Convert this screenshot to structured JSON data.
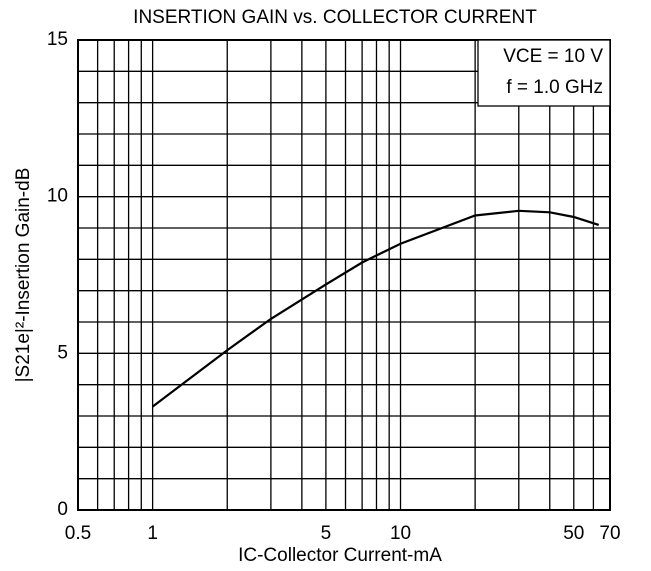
{
  "chart_data": {
    "type": "line",
    "title": "INSERTION GAIN vs. COLLECTOR CURRENT",
    "xlabel": "IC-Collector Current-mA",
    "ylabel": "|S21e|²-Insertion Gain-dB",
    "annotations": [
      "VCE = 10 V",
      "f = 1.0 GHz"
    ],
    "xscale": "log",
    "x": [
      1,
      2,
      3,
      5,
      7,
      10,
      20,
      30,
      40,
      50,
      63
    ],
    "series": [
      {
        "color": "#000000",
        "values": [
          3.3,
          5.1,
          6.1,
          7.2,
          7.9,
          8.5,
          9.4,
          9.55,
          9.5,
          9.35,
          9.1
        ]
      }
    ],
    "xlim": [
      0.5,
      70
    ],
    "xticks": [
      0.5,
      1,
      5,
      10,
      50,
      70
    ],
    "ylim": [
      0,
      15
    ],
    "yticks": [
      0,
      5,
      10,
      15
    ],
    "xgrid": [
      0.5,
      0.6,
      0.7,
      0.8,
      0.9,
      1,
      2,
      3,
      4,
      5,
      6,
      7,
      8,
      9,
      10,
      20,
      30,
      40,
      50,
      60,
      70
    ],
    "ygrid": [
      0,
      1,
      2,
      3,
      4,
      5,
      6,
      7,
      8,
      9,
      10,
      11,
      12,
      13,
      14,
      15
    ],
    "grid": true
  }
}
